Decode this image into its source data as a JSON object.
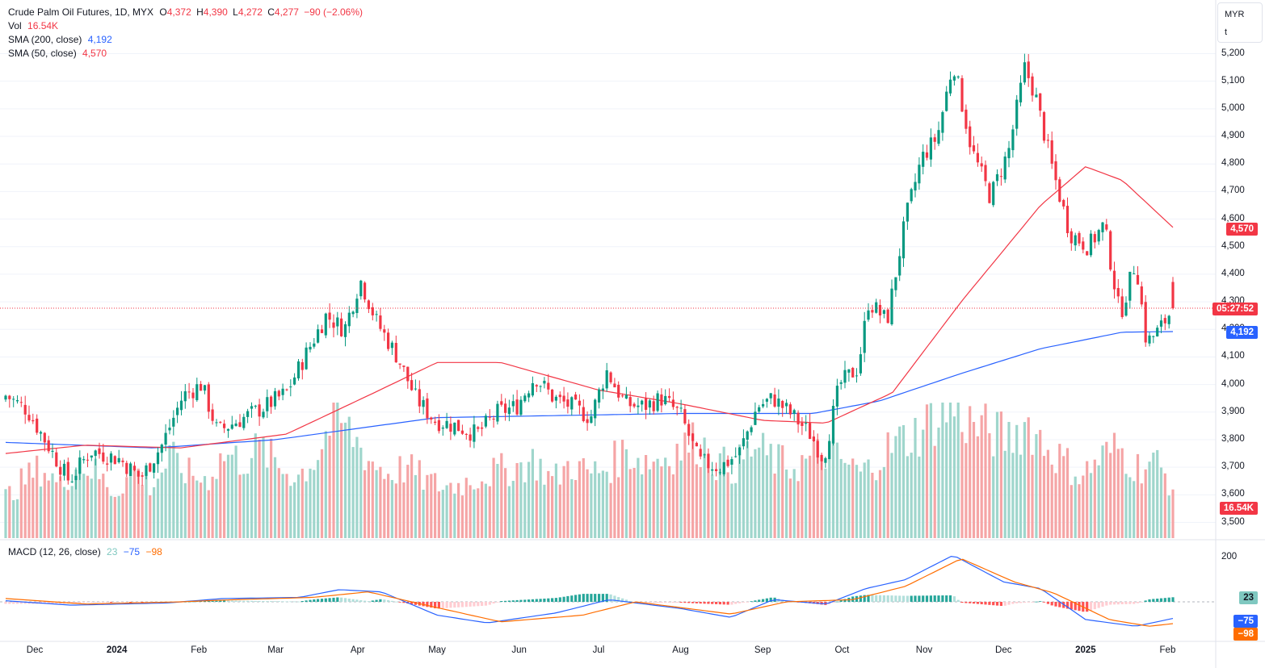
{
  "legend": {
    "symbol": "Crude Palm Oil Futures, 1D, MYX",
    "o_label": "O",
    "o": "4,372",
    "h_label": "H",
    "h": "4,390",
    "l_label": "L",
    "l": "4,272",
    "c_label": "C",
    "c": "4,277",
    "change": "−90 (−2.06%)",
    "vol_label": "Vol",
    "vol": "16.54K",
    "sma200_label": "SMA (200, close)",
    "sma200": "4,192",
    "sma50_label": "SMA (50, close)",
    "sma50": "4,570",
    "macd_label": "MACD (12, 26, close)",
    "macd_hist": "23",
    "macd": "−75",
    "signal": "−98"
  },
  "scale": {
    "currency": "MYR",
    "unit": "t"
  },
  "tags": {
    "sma50": "4,570",
    "countdown": "05:27:52",
    "sma200": "4,192",
    "volume": "16.54K",
    "macd_hist": "23",
    "macd": "−75",
    "signal": "−98"
  },
  "colors": {
    "up": "#089981",
    "down": "#f23645",
    "vol_up": "#9fd6cc",
    "vol_down": "#f5a5a6",
    "sma200": "#2962ff",
    "sma50": "#f23645",
    "macd": "#2962ff",
    "signal": "#ff6d00"
  },
  "chart_data": [
    {
      "type": "candlestick",
      "title": "Crude Palm Oil Futures, 1D, MYX",
      "x_axis_labels": [
        "Dec",
        "2024",
        "Feb",
        "Mar",
        "Apr",
        "May",
        "Jun",
        "Jul",
        "Aug",
        "Sep",
        "Oct",
        "Nov",
        "Dec",
        "2025",
        "Feb"
      ],
      "y_ticks": [
        3500,
        3600,
        3700,
        3800,
        3900,
        4000,
        4100,
        4200,
        4300,
        4400,
        4500,
        4600,
        4700,
        4800,
        4900,
        5000,
        5100,
        5200
      ],
      "ylim": [
        3450,
        5230
      ],
      "close_anchors": [
        {
          "x": "2023-11-20",
          "y": 3960
        },
        {
          "x": "2023-11-28",
          "y": 3910
        },
        {
          "x": "2023-12-06",
          "y": 3780
        },
        {
          "x": "2023-12-14",
          "y": 3650
        },
        {
          "x": "2023-12-22",
          "y": 3760
        },
        {
          "x": "2024-01-02",
          "y": 3730
        },
        {
          "x": "2024-01-10",
          "y": 3660
        },
        {
          "x": "2024-01-18",
          "y": 3780
        },
        {
          "x": "2024-01-26",
          "y": 3960
        },
        {
          "x": "2024-02-02",
          "y": 4000
        },
        {
          "x": "2024-02-08",
          "y": 3830
        },
        {
          "x": "2024-02-16",
          "y": 3870
        },
        {
          "x": "2024-02-26",
          "y": 3920
        },
        {
          "x": "2024-03-05",
          "y": 3970
        },
        {
          "x": "2024-03-13",
          "y": 4120
        },
        {
          "x": "2024-03-20",
          "y": 4250
        },
        {
          "x": "2024-03-27",
          "y": 4200
        },
        {
          "x": "2024-04-02",
          "y": 4380
        },
        {
          "x": "2024-04-08",
          "y": 4230
        },
        {
          "x": "2024-04-16",
          "y": 4100
        },
        {
          "x": "2024-04-23",
          "y": 3950
        },
        {
          "x": "2024-04-30",
          "y": 3870
        },
        {
          "x": "2024-05-08",
          "y": 3850
        },
        {
          "x": "2024-05-16",
          "y": 3820
        },
        {
          "x": "2024-05-24",
          "y": 3900
        },
        {
          "x": "2024-05-31",
          "y": 3920
        },
        {
          "x": "2024-06-07",
          "y": 4030
        },
        {
          "x": "2024-06-14",
          "y": 3950
        },
        {
          "x": "2024-06-21",
          "y": 3920
        },
        {
          "x": "2024-06-28",
          "y": 3880
        },
        {
          "x": "2024-07-04",
          "y": 4050
        },
        {
          "x": "2024-07-11",
          "y": 3930
        },
        {
          "x": "2024-07-18",
          "y": 3920
        },
        {
          "x": "2024-07-25",
          "y": 3950
        },
        {
          "x": "2024-08-01",
          "y": 3890
        },
        {
          "x": "2024-08-08",
          "y": 3720
        },
        {
          "x": "2024-08-16",
          "y": 3700
        },
        {
          "x": "2024-08-23",
          "y": 3750
        },
        {
          "x": "2024-08-30",
          "y": 3920
        },
        {
          "x": "2024-09-05",
          "y": 3950
        },
        {
          "x": "2024-09-12",
          "y": 3890
        },
        {
          "x": "2024-09-19",
          "y": 3820
        },
        {
          "x": "2024-09-24",
          "y": 3730
        },
        {
          "x": "2024-09-30",
          "y": 4000
        },
        {
          "x": "2024-10-07",
          "y": 4060
        },
        {
          "x": "2024-10-11",
          "y": 4300
        },
        {
          "x": "2024-10-18",
          "y": 4230
        },
        {
          "x": "2024-10-25",
          "y": 4600
        },
        {
          "x": "2024-10-31",
          "y": 4820
        },
        {
          "x": "2024-11-06",
          "y": 4900
        },
        {
          "x": "2024-11-12",
          "y": 5170
        },
        {
          "x": "2024-11-19",
          "y": 4850
        },
        {
          "x": "2024-11-26",
          "y": 4680
        },
        {
          "x": "2024-12-03",
          "y": 4850
        },
        {
          "x": "2024-12-09",
          "y": 5150
        },
        {
          "x": "2024-12-13",
          "y": 5050
        },
        {
          "x": "2024-12-19",
          "y": 4800
        },
        {
          "x": "2024-12-26",
          "y": 4550
        },
        {
          "x": "2025-01-02",
          "y": 4500
        },
        {
          "x": "2025-01-08",
          "y": 4580
        },
        {
          "x": "2025-01-14",
          "y": 4250
        },
        {
          "x": "2025-01-20",
          "y": 4450
        },
        {
          "x": "2025-01-24",
          "y": 4150
        },
        {
          "x": "2025-01-29",
          "y": 4200
        },
        {
          "x": "2025-02-03",
          "y": 4277
        }
      ],
      "last": {
        "open": 4372,
        "high": 4390,
        "low": 4272,
        "close": 4277,
        "change": -90,
        "change_pct": -2.06
      },
      "overlays": [
        {
          "name": "SMA (200, close)",
          "last": 4192,
          "points": [
            {
              "x": "2023-11-20",
              "y": 3790
            },
            {
              "x": "2024-01-15",
              "y": 3770
            },
            {
              "x": "2024-03-01",
              "y": 3800
            },
            {
              "x": "2024-05-01",
              "y": 3880
            },
            {
              "x": "2024-08-01",
              "y": 3895
            },
            {
              "x": "2024-09-20",
              "y": 3895
            },
            {
              "x": "2024-10-15",
              "y": 3940
            },
            {
              "x": "2024-11-15",
              "y": 4040
            },
            {
              "x": "2024-12-15",
              "y": 4130
            },
            {
              "x": "2025-01-15",
              "y": 4190
            },
            {
              "x": "2025-02-03",
              "y": 4192
            }
          ]
        },
        {
          "name": "SMA (50, close)",
          "last": 4570,
          "points": [
            {
              "x": "2023-11-20",
              "y": 3750
            },
            {
              "x": "2023-12-20",
              "y": 3780
            },
            {
              "x": "2024-01-25",
              "y": 3770
            },
            {
              "x": "2024-03-05",
              "y": 3820
            },
            {
              "x": "2024-04-05",
              "y": 3960
            },
            {
              "x": "2024-05-01",
              "y": 4080
            },
            {
              "x": "2024-05-25",
              "y": 4080
            },
            {
              "x": "2024-07-01",
              "y": 3980
            },
            {
              "x": "2024-08-01",
              "y": 3930
            },
            {
              "x": "2024-09-01",
              "y": 3870
            },
            {
              "x": "2024-09-25",
              "y": 3860
            },
            {
              "x": "2024-10-20",
              "y": 3970
            },
            {
              "x": "2024-11-15",
              "y": 4300
            },
            {
              "x": "2024-12-15",
              "y": 4650
            },
            {
              "x": "2025-01-01",
              "y": 4790
            },
            {
              "x": "2025-01-15",
              "y": 4740
            },
            {
              "x": "2025-02-03",
              "y": 4570
            }
          ]
        }
      ]
    },
    {
      "type": "bar",
      "title": "Vol",
      "last": "16.54K",
      "levels": [
        0.32,
        0.45,
        0.55,
        0.4,
        0.6,
        0.5,
        0.35,
        0.55,
        0.4,
        0.62,
        0.5,
        0.45,
        0.65,
        0.6,
        0.7,
        0.55,
        0.48,
        0.62,
        0.95,
        0.8,
        0.6,
        0.5,
        0.55,
        0.45,
        0.4,
        0.42,
        0.48,
        0.52,
        0.55,
        0.6,
        0.45,
        0.58,
        0.5,
        0.55,
        0.68,
        0.6,
        0.62,
        0.7,
        0.75,
        0.58,
        0.55,
        0.7,
        0.62,
        0.55,
        0.6,
        0.68,
        0.58,
        0.5,
        0.65,
        0.75,
        0.82,
        0.95,
        1.0,
        0.88,
        0.82,
        0.78,
        0.9,
        0.72,
        0.6,
        0.48,
        0.62,
        0.7,
        0.55,
        0.6,
        0.4
      ]
    },
    {
      "type": "line",
      "title": "MACD (12, 26, close)",
      "y_ticks": [
        200
      ],
      "series": [
        {
          "name": "MACD",
          "last": -75,
          "points": [
            {
              "x": "2023-11-20",
              "y": 5
            },
            {
              "x": "2023-12-15",
              "y": -15
            },
            {
              "x": "2024-01-20",
              "y": -5
            },
            {
              "x": "2024-02-10",
              "y": 15
            },
            {
              "x": "2024-03-10",
              "y": 20
            },
            {
              "x": "2024-03-25",
              "y": 55
            },
            {
              "x": "2024-04-10",
              "y": 45
            },
            {
              "x": "2024-05-01",
              "y": -60
            },
            {
              "x": "2024-05-20",
              "y": -95
            },
            {
              "x": "2024-06-15",
              "y": -50
            },
            {
              "x": "2024-07-05",
              "y": 10
            },
            {
              "x": "2024-08-01",
              "y": -30
            },
            {
              "x": "2024-08-20",
              "y": -70
            },
            {
              "x": "2024-09-05",
              "y": 10
            },
            {
              "x": "2024-09-25",
              "y": -10
            },
            {
              "x": "2024-10-10",
              "y": 60
            },
            {
              "x": "2024-10-25",
              "y": 100
            },
            {
              "x": "2024-11-12",
              "y": 210
            },
            {
              "x": "2024-12-01",
              "y": 90
            },
            {
              "x": "2024-12-15",
              "y": 60
            },
            {
              "x": "2025-01-01",
              "y": -80
            },
            {
              "x": "2025-01-20",
              "y": -110
            },
            {
              "x": "2025-02-03",
              "y": -75
            }
          ]
        },
        {
          "name": "Signal",
          "last": -98,
          "points": [
            {
              "x": "2023-11-20",
              "y": 15
            },
            {
              "x": "2023-12-20",
              "y": -10
            },
            {
              "x": "2024-01-25",
              "y": 0
            },
            {
              "x": "2024-02-15",
              "y": 10
            },
            {
              "x": "2024-03-15",
              "y": 20
            },
            {
              "x": "2024-04-05",
              "y": 45
            },
            {
              "x": "2024-04-25",
              "y": -10
            },
            {
              "x": "2024-05-25",
              "y": -90
            },
            {
              "x": "2024-06-25",
              "y": -60
            },
            {
              "x": "2024-07-15",
              "y": 0
            },
            {
              "x": "2024-08-20",
              "y": -55
            },
            {
              "x": "2024-09-10",
              "y": 0
            },
            {
              "x": "2024-10-05",
              "y": 10
            },
            {
              "x": "2024-10-25",
              "y": 70
            },
            {
              "x": "2024-11-15",
              "y": 195
            },
            {
              "x": "2024-12-05",
              "y": 90
            },
            {
              "x": "2024-12-20",
              "y": 40
            },
            {
              "x": "2025-01-10",
              "y": -80
            },
            {
              "x": "2025-01-25",
              "y": -110
            },
            {
              "x": "2025-02-03",
              "y": -98
            }
          ]
        }
      ],
      "histogram_last": 23
    }
  ]
}
